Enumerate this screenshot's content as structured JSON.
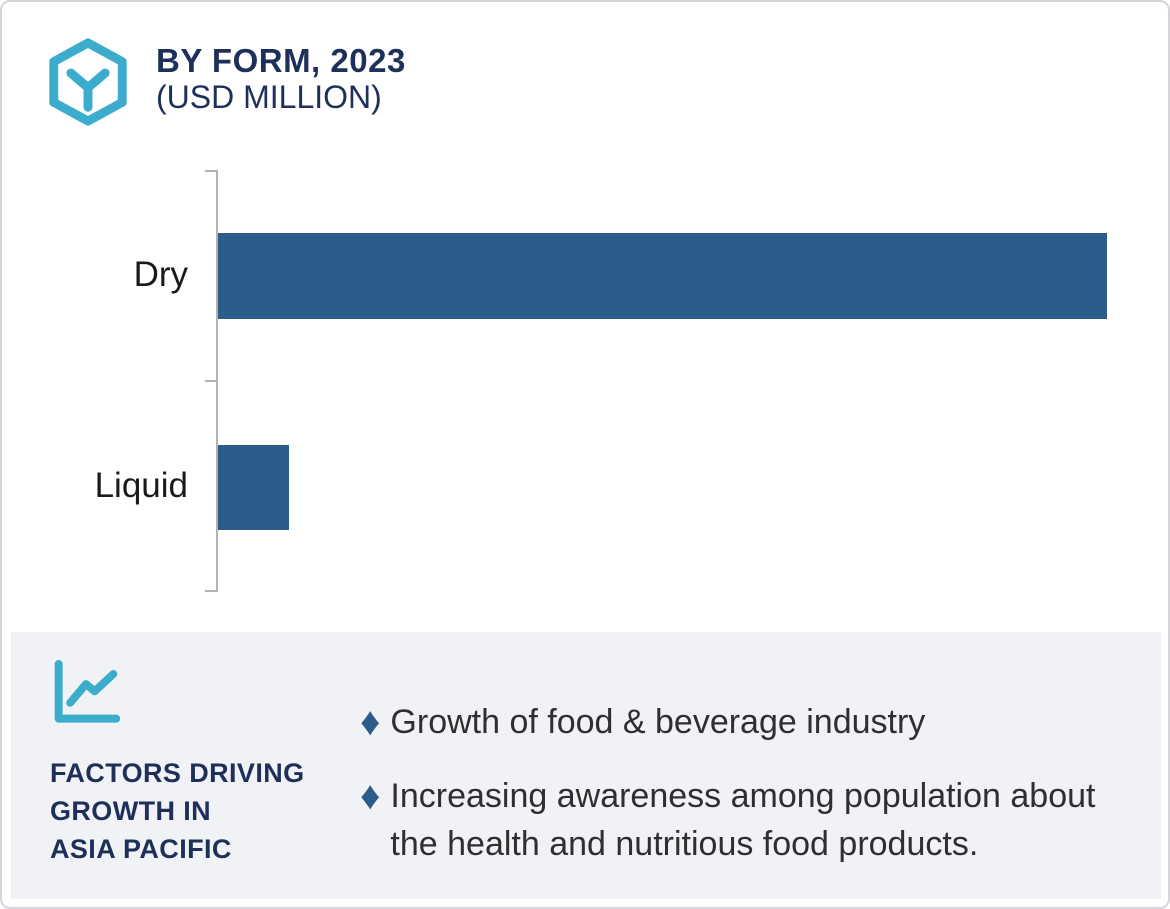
{
  "header": {
    "title": "BY FORM, 2023",
    "subtitle": "(USD MILLION)"
  },
  "chart_data": {
    "type": "bar",
    "orientation": "horizontal",
    "title": "BY FORM, 2023 (USD MILLION)",
    "categories": [
      "Dry",
      "Liquid"
    ],
    "values": [
      100,
      8
    ],
    "values_note": "no numeric axis or data labels shown; values are relative bar lengths (Dry = 100)",
    "axis_max": 103,
    "xlabel": "",
    "ylabel": "",
    "grid": false,
    "legend": false,
    "bar_color": "#2b5c8a",
    "axis_ticks": 3
  },
  "panel": {
    "caption_lines": [
      "FACTORS DRIVING",
      "GROWTH IN",
      "ASIA PACIFIC"
    ],
    "bullet_glyph": "♦",
    "bullets": [
      "Growth of food & beverage industry",
      "Increasing awareness among population about the health and nutritious food products."
    ]
  },
  "icons": {
    "header_icon": "hexagon-cube-icon",
    "panel_icon": "trend-line-chart-icon",
    "bullet_icon": "diamond-icon"
  },
  "colors": {
    "navy": "#1e2f5a",
    "teal": "#3baccb",
    "bar_blue": "#2b5c8a",
    "panel_bg": "#f1f2f6",
    "axis_gray": "#b3b3b3",
    "text_dark": "#2f2f2f",
    "border_gray": "#d5d6dc"
  }
}
